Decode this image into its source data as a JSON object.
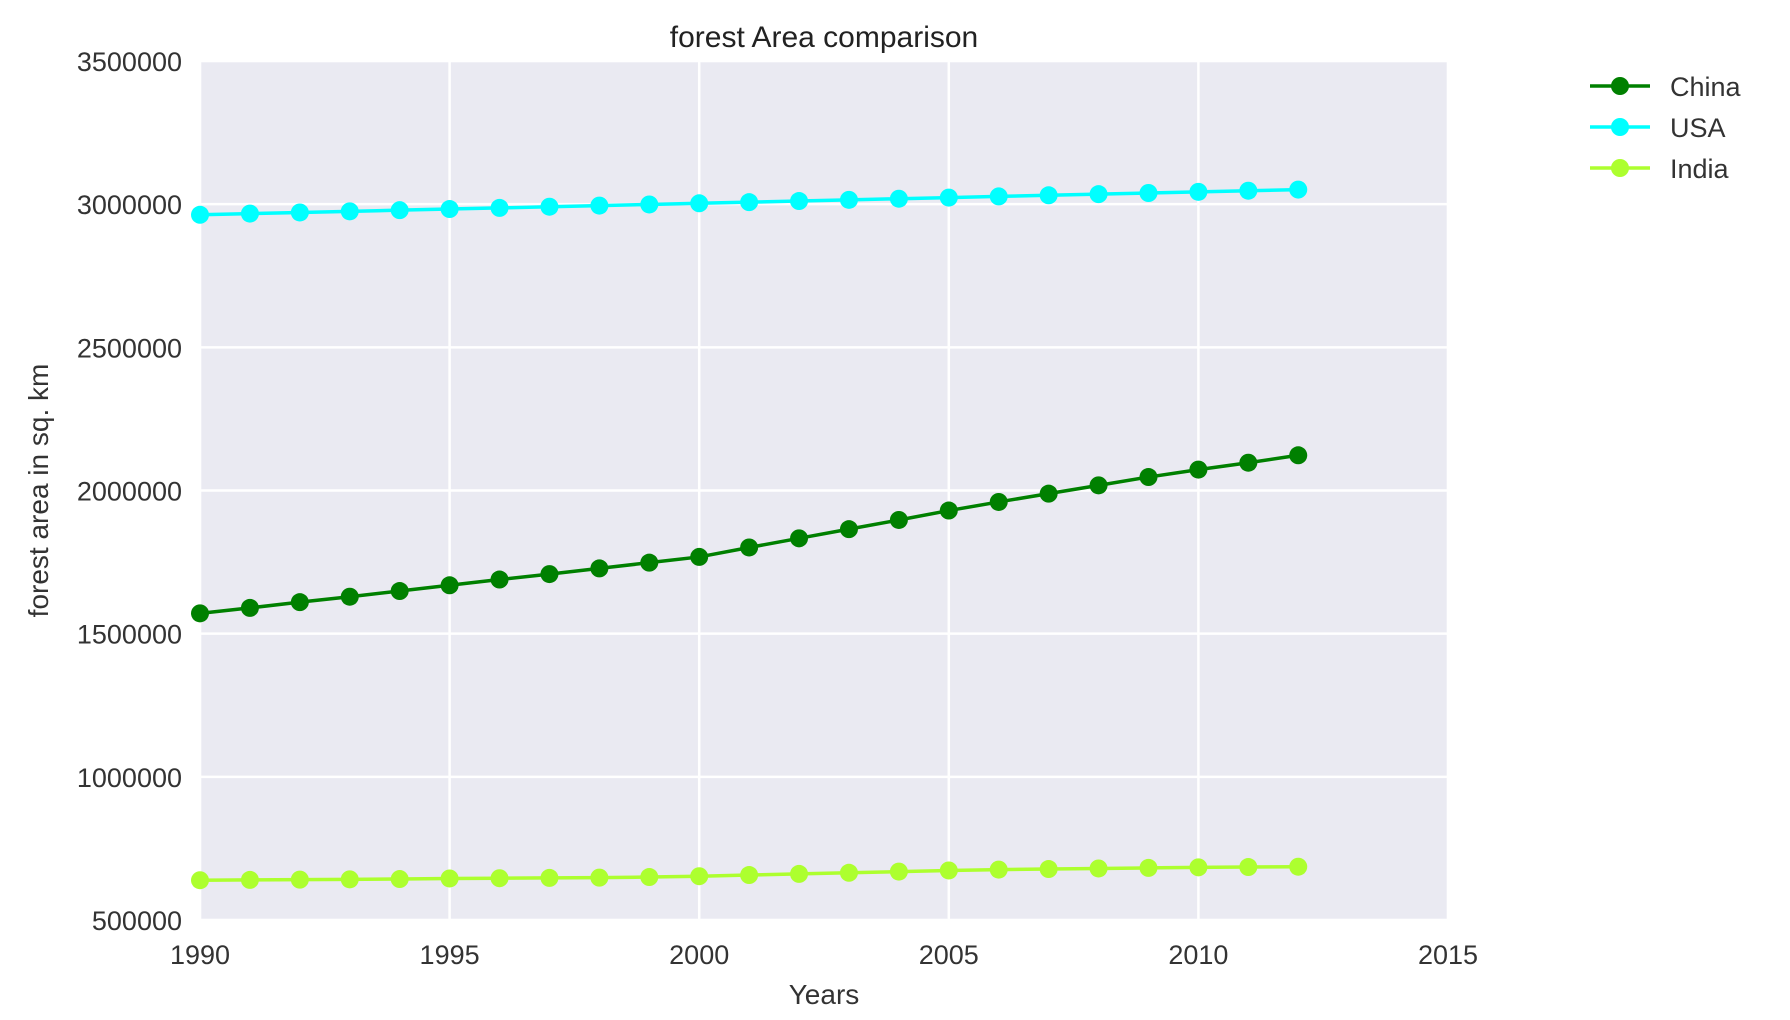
{
  "chart_data": {
    "type": "line",
    "title": "forest Area comparison",
    "xlabel": "Years",
    "ylabel": "forest area in sq. km",
    "xlim": [
      1990,
      2015
    ],
    "ylim": [
      500000,
      3500000
    ],
    "xticks": [
      1990,
      1995,
      2000,
      2005,
      2010,
      2015
    ],
    "yticks": [
      500000,
      1000000,
      1500000,
      2000000,
      2500000,
      3000000,
      3500000
    ],
    "x": [
      1990,
      1991,
      1992,
      1993,
      1994,
      1995,
      1996,
      1997,
      1998,
      1999,
      2000,
      2001,
      2002,
      2003,
      2004,
      2005,
      2006,
      2007,
      2008,
      2009,
      2010,
      2011,
      2012
    ],
    "grid": true,
    "background": "#EAEAF2",
    "legend_position": "outside top-right",
    "series": [
      {
        "name": "China",
        "color": "#008000",
        "marker": "circle",
        "values": [
          1571000,
          1590000,
          1610000,
          1629000,
          1649000,
          1669000,
          1689000,
          1708000,
          1728000,
          1748000,
          1768000,
          1801000,
          1833000,
          1865000,
          1897000,
          1930000,
          1960000,
          1989000,
          2018000,
          2047000,
          2073000,
          2097000,
          2123000
        ]
      },
      {
        "name": "USA",
        "color": "#00FFFF",
        "marker": "circle",
        "values": [
          2963000,
          2967000,
          2971000,
          2975000,
          2979000,
          2983000,
          2987000,
          2991000,
          2995000,
          2999000,
          3003000,
          3007000,
          3011000,
          3015000,
          3019000,
          3023000,
          3027000,
          3031000,
          3035000,
          3039000,
          3043000,
          3047000,
          3051000
        ]
      },
      {
        "name": "India",
        "color": "#ADFF2F",
        "marker": "circle",
        "values": [
          639000,
          640000,
          641000,
          642000,
          643000,
          645000,
          646000,
          647000,
          648000,
          650000,
          653000,
          657000,
          661000,
          665000,
          669000,
          673000,
          676000,
          678000,
          680000,
          682000,
          684000,
          685000,
          686000
        ]
      }
    ]
  }
}
